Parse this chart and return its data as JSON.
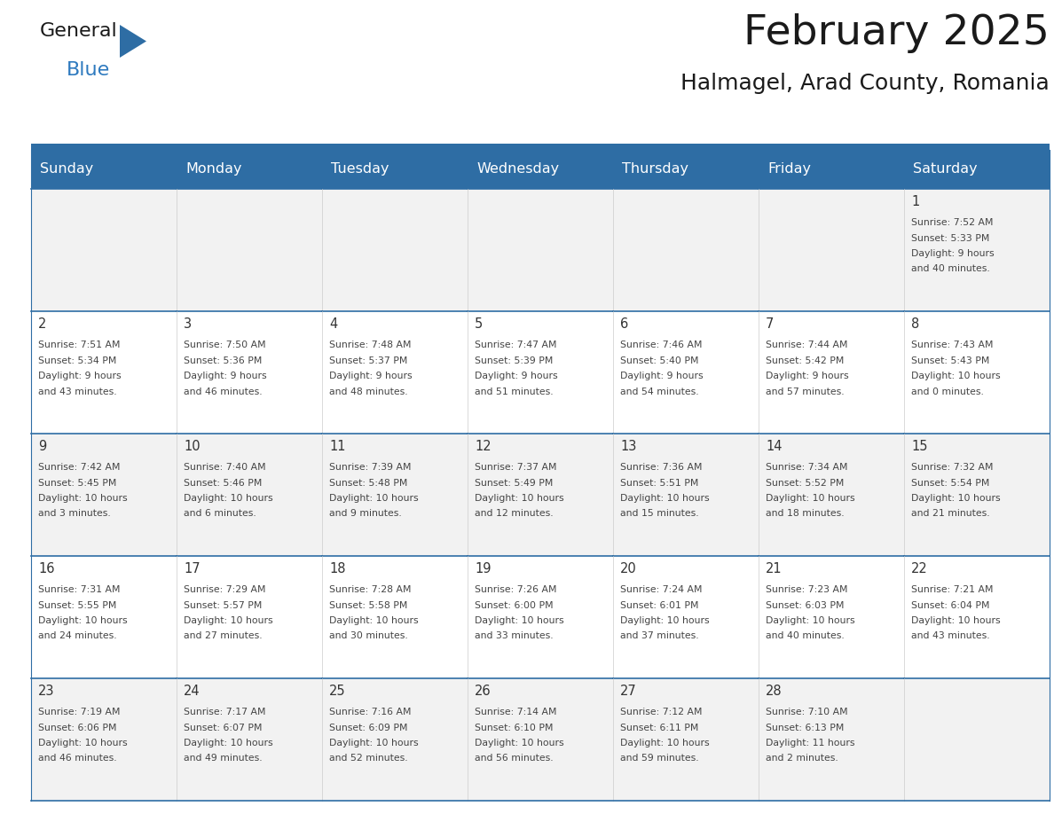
{
  "title": "February 2025",
  "subtitle": "Halmagel, Arad County, Romania",
  "header_color": "#2e6da4",
  "header_text_color": "#ffffff",
  "row_bg_colors": [
    "#f2f2f2",
    "#ffffff",
    "#f2f2f2",
    "#ffffff",
    "#f2f2f2"
  ],
  "title_color": "#1a1a1a",
  "subtitle_color": "#1a1a1a",
  "day_number_color": "#333333",
  "cell_text_color": "#444444",
  "line_color": "#2e6da4",
  "logo_text_color": "#1a1a1a",
  "logo_blue_color": "#2e7abf",
  "logo_triangle_color": "#2e6da4",
  "days_of_week": [
    "Sunday",
    "Monday",
    "Tuesday",
    "Wednesday",
    "Thursday",
    "Friday",
    "Saturday"
  ],
  "calendar_data": [
    [
      null,
      null,
      null,
      null,
      null,
      null,
      1
    ],
    [
      2,
      3,
      4,
      5,
      6,
      7,
      8
    ],
    [
      9,
      10,
      11,
      12,
      13,
      14,
      15
    ],
    [
      16,
      17,
      18,
      19,
      20,
      21,
      22
    ],
    [
      23,
      24,
      25,
      26,
      27,
      28,
      null
    ]
  ],
  "cell_info": {
    "1": {
      "sunrise": "7:52 AM",
      "sunset": "5:33 PM",
      "daylight_line1": "Daylight: 9 hours",
      "daylight_line2": "and 40 minutes."
    },
    "2": {
      "sunrise": "7:51 AM",
      "sunset": "5:34 PM",
      "daylight_line1": "Daylight: 9 hours",
      "daylight_line2": "and 43 minutes."
    },
    "3": {
      "sunrise": "7:50 AM",
      "sunset": "5:36 PM",
      "daylight_line1": "Daylight: 9 hours",
      "daylight_line2": "and 46 minutes."
    },
    "4": {
      "sunrise": "7:48 AM",
      "sunset": "5:37 PM",
      "daylight_line1": "Daylight: 9 hours",
      "daylight_line2": "and 48 minutes."
    },
    "5": {
      "sunrise": "7:47 AM",
      "sunset": "5:39 PM",
      "daylight_line1": "Daylight: 9 hours",
      "daylight_line2": "and 51 minutes."
    },
    "6": {
      "sunrise": "7:46 AM",
      "sunset": "5:40 PM",
      "daylight_line1": "Daylight: 9 hours",
      "daylight_line2": "and 54 minutes."
    },
    "7": {
      "sunrise": "7:44 AM",
      "sunset": "5:42 PM",
      "daylight_line1": "Daylight: 9 hours",
      "daylight_line2": "and 57 minutes."
    },
    "8": {
      "sunrise": "7:43 AM",
      "sunset": "5:43 PM",
      "daylight_line1": "Daylight: 10 hours",
      "daylight_line2": "and 0 minutes."
    },
    "9": {
      "sunrise": "7:42 AM",
      "sunset": "5:45 PM",
      "daylight_line1": "Daylight: 10 hours",
      "daylight_line2": "and 3 minutes."
    },
    "10": {
      "sunrise": "7:40 AM",
      "sunset": "5:46 PM",
      "daylight_line1": "Daylight: 10 hours",
      "daylight_line2": "and 6 minutes."
    },
    "11": {
      "sunrise": "7:39 AM",
      "sunset": "5:48 PM",
      "daylight_line1": "Daylight: 10 hours",
      "daylight_line2": "and 9 minutes."
    },
    "12": {
      "sunrise": "7:37 AM",
      "sunset": "5:49 PM",
      "daylight_line1": "Daylight: 10 hours",
      "daylight_line2": "and 12 minutes."
    },
    "13": {
      "sunrise": "7:36 AM",
      "sunset": "5:51 PM",
      "daylight_line1": "Daylight: 10 hours",
      "daylight_line2": "and 15 minutes."
    },
    "14": {
      "sunrise": "7:34 AM",
      "sunset": "5:52 PM",
      "daylight_line1": "Daylight: 10 hours",
      "daylight_line2": "and 18 minutes."
    },
    "15": {
      "sunrise": "7:32 AM",
      "sunset": "5:54 PM",
      "daylight_line1": "Daylight: 10 hours",
      "daylight_line2": "and 21 minutes."
    },
    "16": {
      "sunrise": "7:31 AM",
      "sunset": "5:55 PM",
      "daylight_line1": "Daylight: 10 hours",
      "daylight_line2": "and 24 minutes."
    },
    "17": {
      "sunrise": "7:29 AM",
      "sunset": "5:57 PM",
      "daylight_line1": "Daylight: 10 hours",
      "daylight_line2": "and 27 minutes."
    },
    "18": {
      "sunrise": "7:28 AM",
      "sunset": "5:58 PM",
      "daylight_line1": "Daylight: 10 hours",
      "daylight_line2": "and 30 minutes."
    },
    "19": {
      "sunrise": "7:26 AM",
      "sunset": "6:00 PM",
      "daylight_line1": "Daylight: 10 hours",
      "daylight_line2": "and 33 minutes."
    },
    "20": {
      "sunrise": "7:24 AM",
      "sunset": "6:01 PM",
      "daylight_line1": "Daylight: 10 hours",
      "daylight_line2": "and 37 minutes."
    },
    "21": {
      "sunrise": "7:23 AM",
      "sunset": "6:03 PM",
      "daylight_line1": "Daylight: 10 hours",
      "daylight_line2": "and 40 minutes."
    },
    "22": {
      "sunrise": "7:21 AM",
      "sunset": "6:04 PM",
      "daylight_line1": "Daylight: 10 hours",
      "daylight_line2": "and 43 minutes."
    },
    "23": {
      "sunrise": "7:19 AM",
      "sunset": "6:06 PM",
      "daylight_line1": "Daylight: 10 hours",
      "daylight_line2": "and 46 minutes."
    },
    "24": {
      "sunrise": "7:17 AM",
      "sunset": "6:07 PM",
      "daylight_line1": "Daylight: 10 hours",
      "daylight_line2": "and 49 minutes."
    },
    "25": {
      "sunrise": "7:16 AM",
      "sunset": "6:09 PM",
      "daylight_line1": "Daylight: 10 hours",
      "daylight_line2": "and 52 minutes."
    },
    "26": {
      "sunrise": "7:14 AM",
      "sunset": "6:10 PM",
      "daylight_line1": "Daylight: 10 hours",
      "daylight_line2": "and 56 minutes."
    },
    "27": {
      "sunrise": "7:12 AM",
      "sunset": "6:11 PM",
      "daylight_line1": "Daylight: 10 hours",
      "daylight_line2": "and 59 minutes."
    },
    "28": {
      "sunrise": "7:10 AM",
      "sunset": "6:13 PM",
      "daylight_line1": "Daylight: 11 hours",
      "daylight_line2": "and 2 minutes."
    }
  }
}
